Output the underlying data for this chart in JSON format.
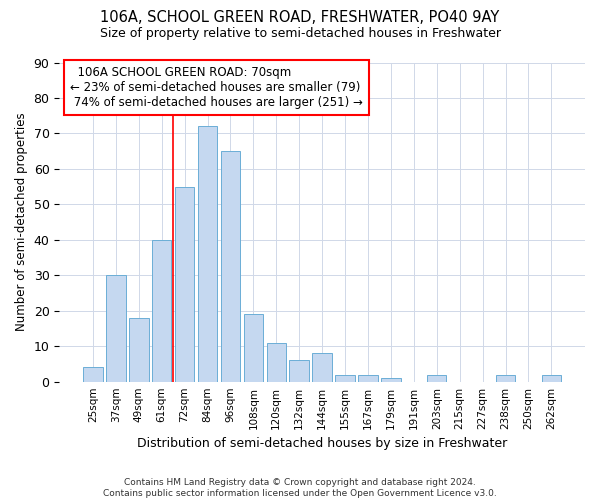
{
  "title_line1": "106A, SCHOOL GREEN ROAD, FRESHWATER, PO40 9AY",
  "title_line2": "Size of property relative to semi-detached houses in Freshwater",
  "xlabel": "Distribution of semi-detached houses by size in Freshwater",
  "ylabel": "Number of semi-detached properties",
  "footnote": "Contains HM Land Registry data © Crown copyright and database right 2024.\nContains public sector information licensed under the Open Government Licence v3.0.",
  "bar_labels": [
    "25sqm",
    "37sqm",
    "49sqm",
    "61sqm",
    "72sqm",
    "84sqm",
    "96sqm",
    "108sqm",
    "120sqm",
    "132sqm",
    "144sqm",
    "155sqm",
    "167sqm",
    "179sqm",
    "191sqm",
    "203sqm",
    "215sqm",
    "227sqm",
    "238sqm",
    "250sqm",
    "262sqm"
  ],
  "bar_values": [
    4,
    30,
    18,
    40,
    55,
    72,
    65,
    19,
    11,
    6,
    8,
    2,
    2,
    1,
    0,
    2,
    0,
    0,
    2,
    0,
    2
  ],
  "bar_color": "#c5d8f0",
  "bar_edge_color": "#6baed6",
  "ylim": [
    0,
    90
  ],
  "yticks": [
    0,
    10,
    20,
    30,
    40,
    50,
    60,
    70,
    80,
    90
  ],
  "property_label": "106A SCHOOL GREEN ROAD: 70sqm",
  "pct_smaller": 23,
  "pct_larger": 74,
  "n_smaller": 79,
  "n_larger": 251,
  "red_line_x": 3.5,
  "background_color": "#ffffff"
}
